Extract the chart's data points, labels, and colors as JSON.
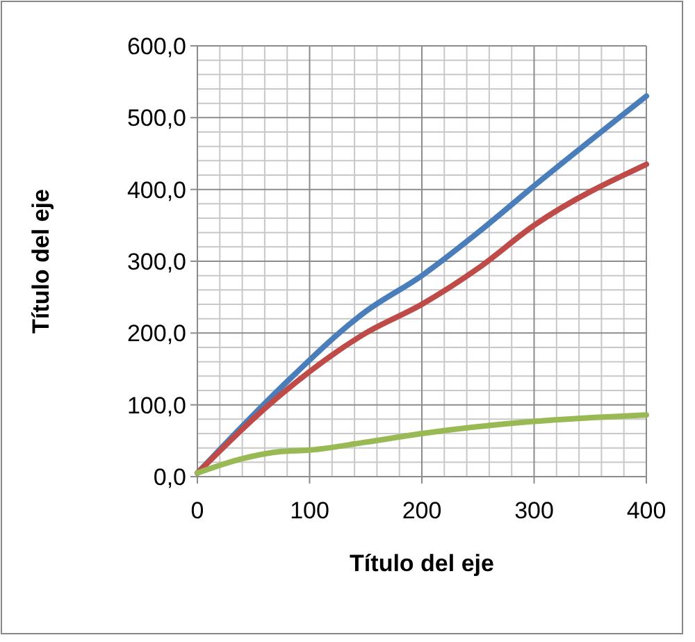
{
  "chart_data": {
    "type": "line",
    "xlabel": "Título del eje",
    "ylabel": "Título del eje",
    "xlim": [
      0,
      400
    ],
    "xticks": [
      0,
      100,
      200,
      300,
      400
    ],
    "ylim": [
      0,
      600
    ],
    "yticks": [
      {
        "value": 0,
        "label": "0,0"
      },
      {
        "value": 100,
        "label": "100,0"
      },
      {
        "value": 200,
        "label": "200,0"
      },
      {
        "value": 300,
        "label": "300,0"
      },
      {
        "value": 400,
        "label": "400,0"
      },
      {
        "value": 500,
        "label": "500,0"
      },
      {
        "value": 600,
        "label": "600,0"
      }
    ],
    "grid": true,
    "marker": "none",
    "line_style": "solid",
    "series": [
      {
        "color": "#4a7ebb",
        "x": [
          0,
          75,
          150,
          200,
          250,
          300,
          400
        ],
        "values": [
          5,
          125,
          230,
          280,
          340,
          405,
          530
        ]
      },
      {
        "color": "#be4b48",
        "x": [
          0,
          75,
          150,
          200,
          250,
          300,
          400
        ],
        "values": [
          5,
          115,
          200,
          240,
          290,
          350,
          435
        ]
      },
      {
        "color": "#98b954",
        "x": [
          0,
          40,
          75,
          100,
          150,
          200,
          300,
          400
        ],
        "values": [
          5,
          25,
          35,
          37,
          48,
          60,
          77,
          86
        ]
      }
    ]
  }
}
